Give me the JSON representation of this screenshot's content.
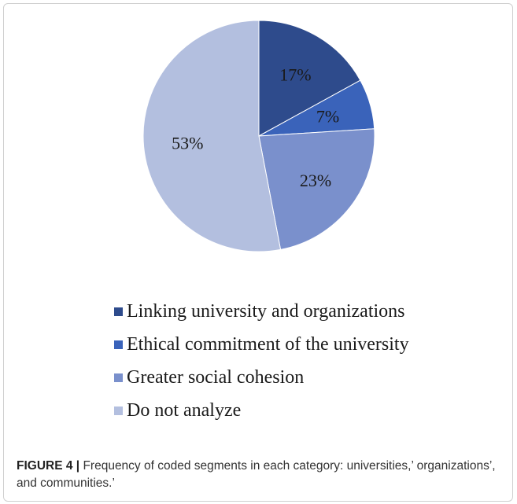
{
  "chart_data": {
    "type": "pie",
    "title": "",
    "series": [
      {
        "name": "Linking university and organizations",
        "value": 17,
        "label": "17%",
        "color": "#2e4b8c"
      },
      {
        "name": "Ethical commitment of the university",
        "value": 7,
        "label": "7%",
        "color": "#3a63ba"
      },
      {
        "name": "Greater social cohesion",
        "value": 23,
        "label": "23%",
        "color": "#7a90cc"
      },
      {
        "name": "Do not analyze",
        "value": 53,
        "label": "53%",
        "color": "#b3bfdf"
      }
    ],
    "start_angle_deg": 0,
    "direction": "clockwise",
    "legend_position": "bottom"
  },
  "caption": {
    "label": "FIGURE 4",
    "separator": "|",
    "text": " Frequency of coded segments in each category: universities,’ organizations’, and communities.’"
  }
}
